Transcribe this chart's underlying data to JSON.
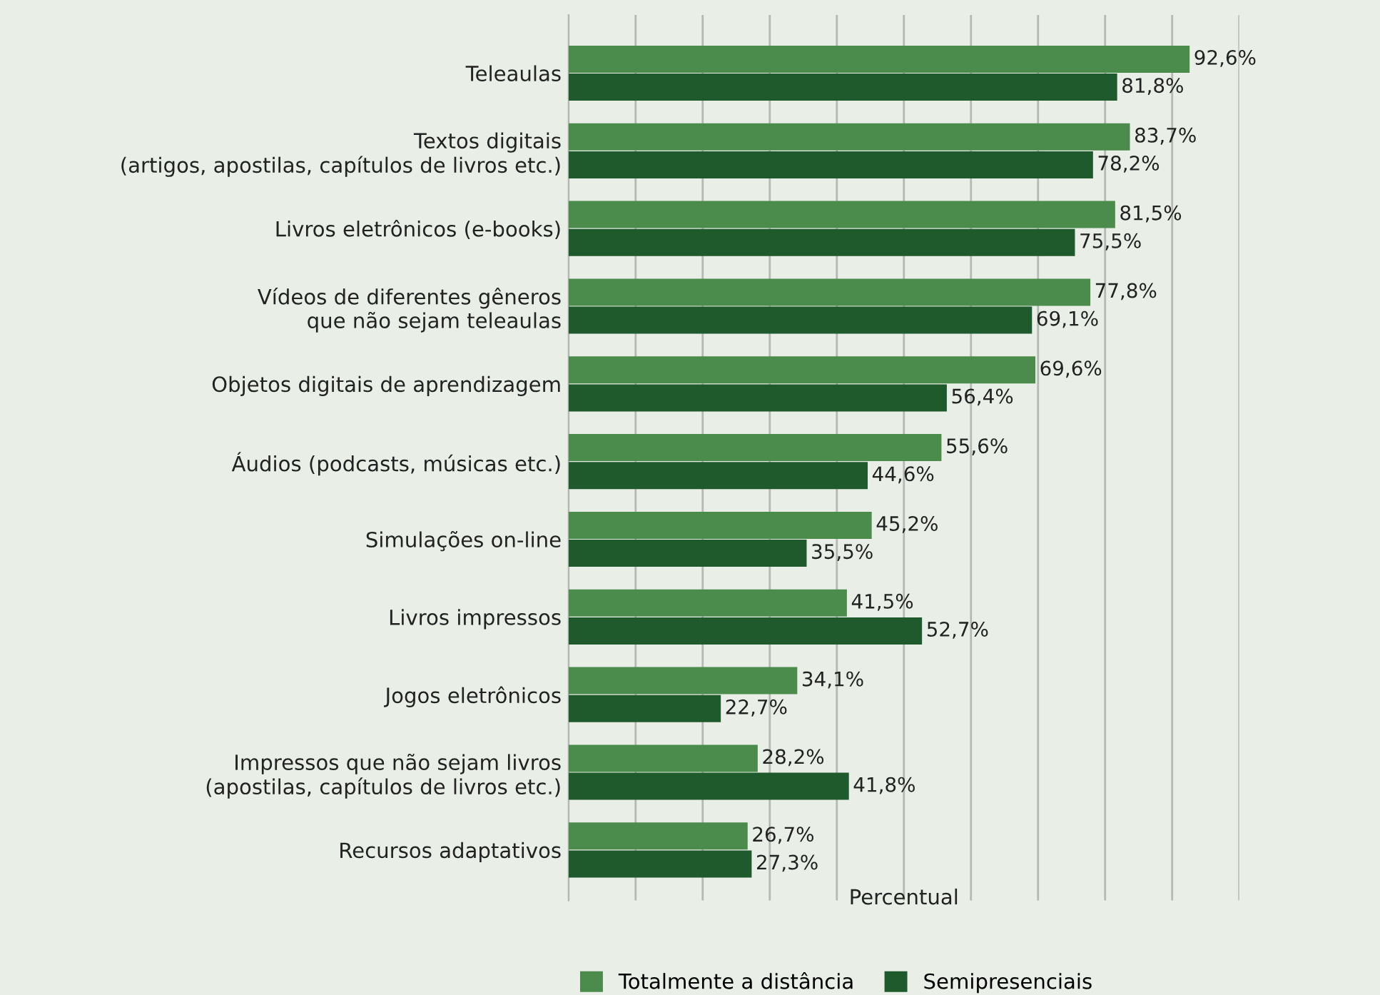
{
  "chart_data": {
    "type": "bar",
    "orientation": "horizontal",
    "xlabel": "Percentual",
    "categories": [
      "Teleaulas",
      "Textos digitais\n(artigos, apostilas, capítulos de livros etc.)",
      "Livros eletrônicos (e-books)",
      "Vídeos de diferentes gêneros\nque não sejam teleaulas",
      "Objetos digitais de aprendizagem",
      "Áudios (podcasts, músicas etc.)",
      "Simulações on-line",
      "Livros impressos",
      "Jogos eletrônicos",
      "Impressos que não sejam livros\n(apostilas, capítulos de livros etc.)",
      "Recursos adaptativos"
    ],
    "series": [
      {
        "name": "Totalmente a distância",
        "color": "#4b8b4b",
        "values": [
          92.6,
          83.7,
          81.5,
          77.8,
          69.6,
          55.6,
          45.2,
          41.5,
          34.1,
          28.2,
          26.7
        ],
        "value_labels": [
          "92,6%",
          "83,7%",
          "81,5%",
          "77,8%",
          "69,6%",
          "55,6%",
          "45,2%",
          "41,5%",
          "34,1%",
          "28,2%",
          "26,7%"
        ]
      },
      {
        "name": "Semipresenciais",
        "color": "#1f5a2c",
        "values": [
          81.8,
          78.2,
          75.5,
          69.1,
          56.4,
          44.6,
          35.5,
          52.7,
          22.7,
          41.8,
          27.3
        ],
        "value_labels": [
          "81,8%",
          "78,2%",
          "75,5%",
          "69,1%",
          "56,4%",
          "44,6%",
          "35,5%",
          "52,7%",
          "22,7%",
          "41,8%",
          "27,3%"
        ]
      }
    ],
    "xlim": [
      0,
      100
    ],
    "xticks": [
      {
        "value": 0,
        "label": null
      },
      {
        "value": 10,
        "label": null
      },
      {
        "value": 20,
        "label": null
      },
      {
        "value": 30,
        "label": null
      },
      {
        "value": 40,
        "label": null
      },
      {
        "value": 50,
        "label": null
      },
      {
        "value": 60,
        "label": null
      },
      {
        "value": 70,
        "label": null
      },
      {
        "value": 80,
        "label": null
      },
      {
        "value": 90,
        "label": null
      },
      {
        "value": 100,
        "label": null
      }
    ],
    "tick_labels": "y",
    "grid": "x",
    "legend": "bottom"
  }
}
